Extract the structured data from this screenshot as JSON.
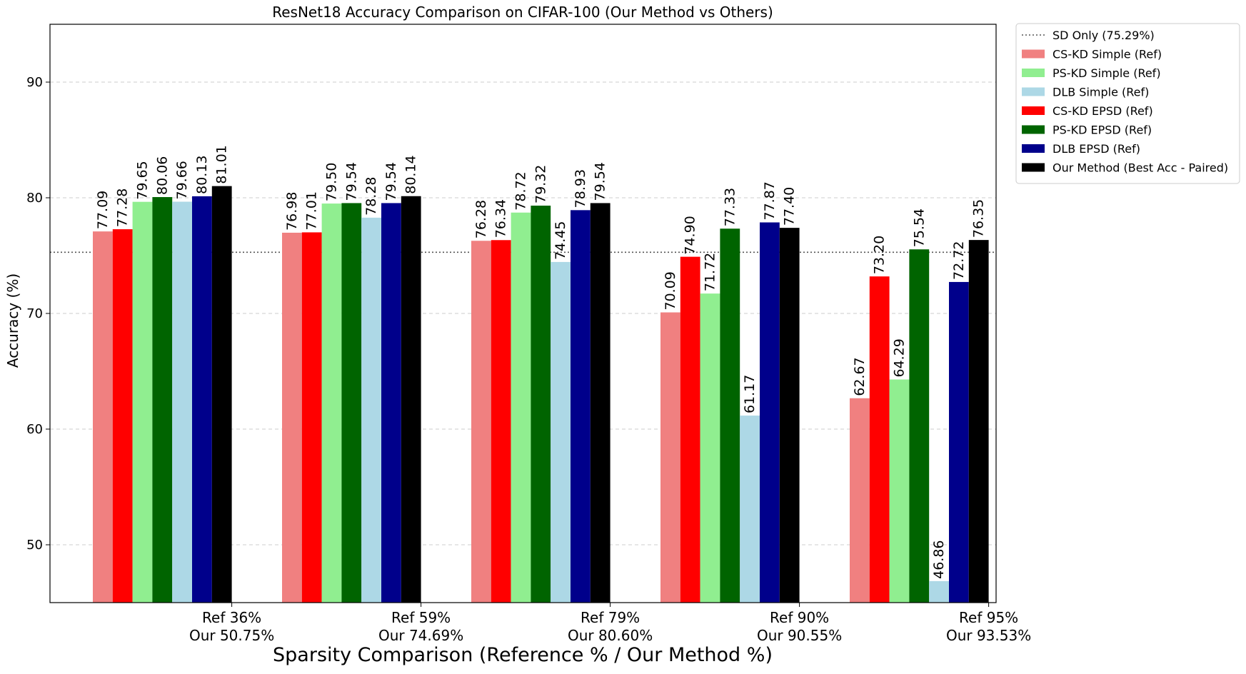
{
  "chart_data": {
    "type": "bar",
    "title": "ResNet18 Accuracy Comparison on CIFAR-100 (Our Method vs Others)",
    "xlabel": "Sparsity Comparison (Reference % / Our Method %)",
    "ylabel": "Accuracy (%)",
    "ylim": [
      45,
      95
    ],
    "yticks": [
      50,
      60,
      70,
      80,
      90
    ],
    "grid": "horizontal dashed",
    "legend_position": "outside-top-right",
    "categories": [
      [
        "Ref 36%",
        "Our 50.75%"
      ],
      [
        "Ref 59%",
        "Our 74.69%"
      ],
      [
        "Ref 79%",
        "Our 80.60%"
      ],
      [
        "Ref 90%",
        "Our 90.55%"
      ],
      [
        "Ref 95%",
        "Our 93.53%"
      ]
    ],
    "reference_line": {
      "name": "SD Only (75.29%)",
      "value": 75.29,
      "color": "#555555",
      "style": "dotted"
    },
    "series": [
      {
        "name": "CS-KD Simple (Ref)",
        "color": "#f08080",
        "values": [
          77.09,
          76.98,
          76.28,
          70.09,
          62.67
        ],
        "labels": [
          "77.09",
          "76.98",
          "76.28",
          "70.09",
          "62.67"
        ]
      },
      {
        "name": "CS-KD EPSD (Ref)",
        "color": "#ff0000",
        "values": [
          77.28,
          77.01,
          76.34,
          74.9,
          73.2
        ],
        "labels": [
          "77.28",
          "77.01",
          "76.34",
          "74.90",
          "73.20"
        ]
      },
      {
        "name": "PS-KD Simple (Ref)",
        "color": "#90ee90",
        "values": [
          79.65,
          79.5,
          78.72,
          71.72,
          64.29
        ],
        "labels": [
          "79.65",
          "79.50",
          "78.72",
          "71.72",
          "64.29"
        ]
      },
      {
        "name": "PS-KD EPSD (Ref)",
        "color": "#006400",
        "values": [
          80.06,
          79.54,
          79.32,
          77.33,
          75.54
        ],
        "labels": [
          "80.06",
          "79.54",
          "79.32",
          "77.33",
          "75.54"
        ]
      },
      {
        "name": "DLB Simple (Ref)",
        "color": "#add8e6",
        "values": [
          79.66,
          78.28,
          74.45,
          61.17,
          46.86
        ],
        "labels": [
          "79.66",
          "78.28",
          "74.45",
          "61.17",
          "46.86"
        ]
      },
      {
        "name": "DLB EPSD (Ref)",
        "color": "#00008b",
        "values": [
          80.13,
          79.54,
          78.93,
          77.87,
          72.72
        ],
        "labels": [
          "80.13",
          "79.54",
          "78.93",
          "77.87",
          "72.72"
        ]
      },
      {
        "name": "Our Method (Best Acc - Paired)",
        "color": "#000000",
        "values": [
          81.01,
          80.14,
          79.54,
          77.4,
          76.35
        ],
        "labels": [
          "81.01",
          "80.14",
          "79.54",
          "77.40",
          "76.35"
        ]
      }
    ],
    "legend_order": [
      "SD Only (75.29%)",
      "CS-KD Simple (Ref)",
      "PS-KD Simple (Ref)",
      "DLB Simple (Ref)",
      "CS-KD EPSD (Ref)",
      "PS-KD EPSD (Ref)",
      "DLB EPSD (Ref)",
      "Our Method (Best Acc - Paired)"
    ]
  }
}
